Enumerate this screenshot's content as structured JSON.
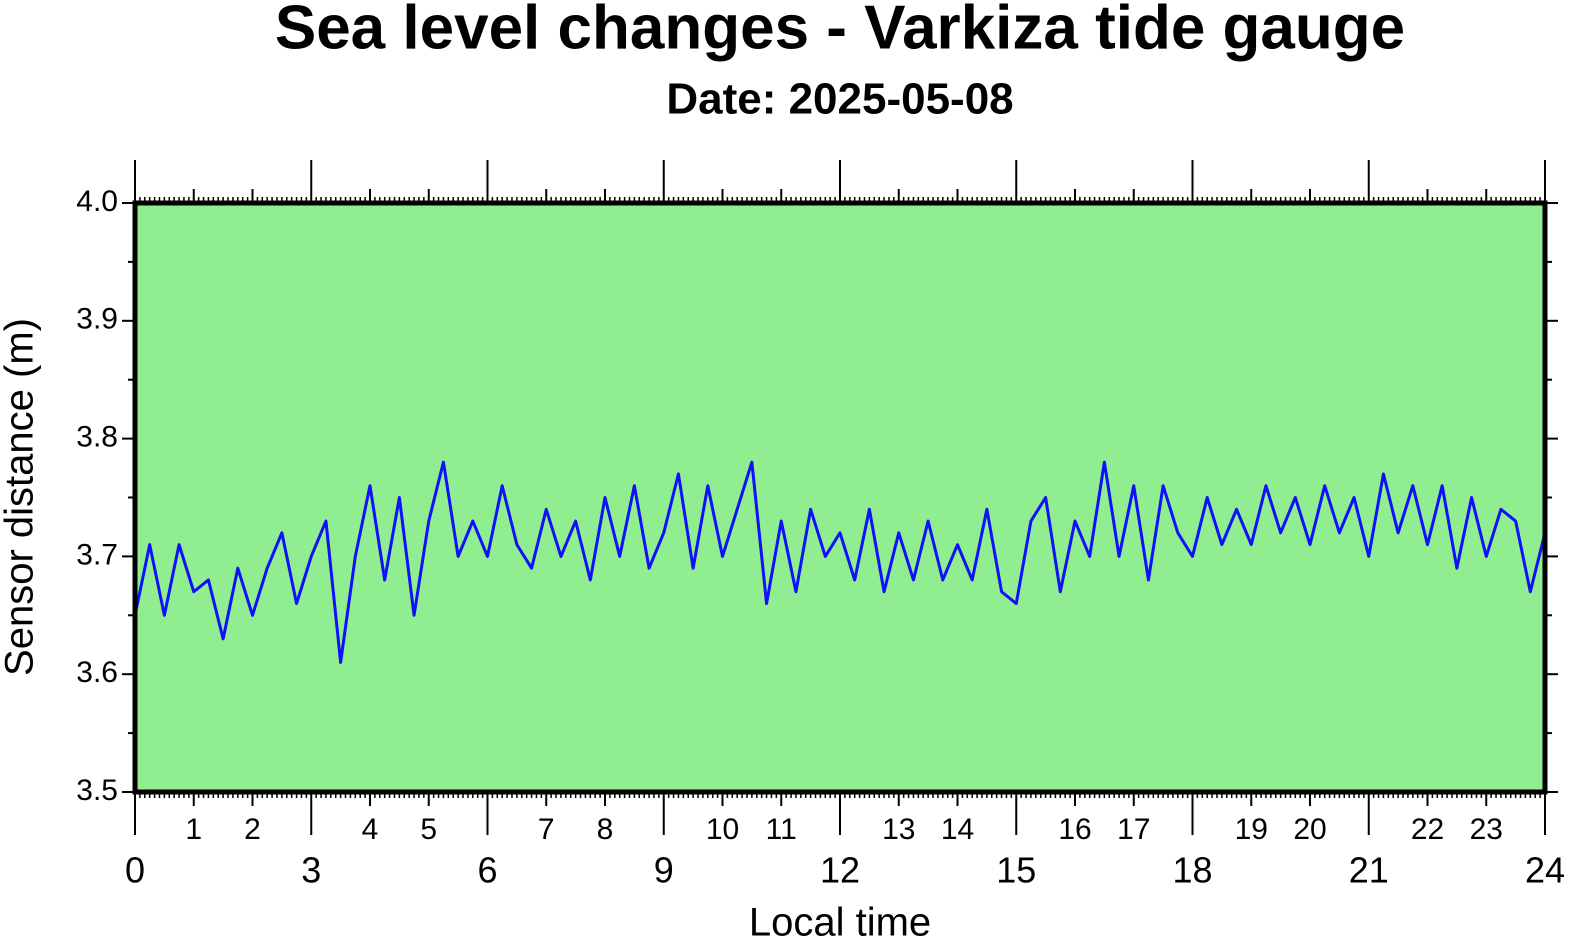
{
  "chart_data": {
    "type": "line",
    "title": "Sea level changes - Varkiza tide gauge",
    "subtitle": "Date: 2025-05-08",
    "xlabel": "Local time",
    "ylabel": "Sensor distance (m)",
    "background": "#90ee90",
    "xlim": [
      0,
      24
    ],
    "ylim": [
      3.5,
      4.0
    ],
    "xticks": [
      0,
      3,
      6,
      9,
      12,
      15,
      18,
      21,
      24
    ],
    "xticks_minor": [
      1,
      2,
      4,
      5,
      7,
      8,
      10,
      11,
      13,
      14,
      16,
      17,
      19,
      20,
      22,
      23
    ],
    "yticks": [
      {
        "value": 3.5,
        "label": "3.5"
      },
      {
        "value": 3.6,
        "label": "3.6"
      },
      {
        "value": 3.7,
        "label": "3.7"
      },
      {
        "value": 3.8,
        "label": "3.8"
      },
      {
        "value": 3.9,
        "label": "3.9"
      },
      {
        "value": 4.0,
        "label": "4.0"
      }
    ],
    "yticks_minor": [
      3.55,
      3.65,
      3.75,
      3.85,
      3.95
    ],
    "x": [
      0,
      0.25,
      0.5,
      0.75,
      1,
      1.25,
      1.5,
      1.75,
      2,
      2.25,
      2.5,
      2.75,
      3,
      3.25,
      3.5,
      3.75,
      4,
      4.25,
      4.5,
      4.75,
      5,
      5.25,
      5.5,
      5.75,
      6,
      6.25,
      6.5,
      6.75,
      7,
      7.25,
      7.5,
      7.75,
      8,
      8.25,
      8.5,
      8.75,
      9,
      9.25,
      9.5,
      9.75,
      10,
      10.25,
      10.5,
      10.75,
      11,
      11.25,
      11.5,
      11.75,
      12,
      12.25,
      12.5,
      12.75,
      13,
      13.25,
      13.5,
      13.75,
      14,
      14.25,
      14.5,
      14.75,
      15,
      15.25,
      15.5,
      15.75,
      16,
      16.25,
      16.5,
      16.75,
      17,
      17.25,
      17.5,
      17.75,
      18,
      18.25,
      18.5,
      18.75,
      19,
      19.25,
      19.5,
      19.75,
      20,
      20.25,
      20.5,
      20.75,
      21,
      21.25,
      21.5,
      21.75,
      22,
      22.25,
      22.5,
      22.75,
      23,
      23.25,
      23.5,
      23.75,
      24
    ],
    "series": [
      {
        "color": "#1010ff",
        "values": [
          3.65,
          3.71,
          3.65,
          3.71,
          3.67,
          3.68,
          3.63,
          3.69,
          3.65,
          3.69,
          3.72,
          3.66,
          3.7,
          3.73,
          3.61,
          3.7,
          3.76,
          3.68,
          3.75,
          3.65,
          3.73,
          3.78,
          3.7,
          3.73,
          3.7,
          3.76,
          3.71,
          3.69,
          3.74,
          3.7,
          3.73,
          3.68,
          3.75,
          3.7,
          3.76,
          3.69,
          3.72,
          3.77,
          3.69,
          3.76,
          3.7,
          3.74,
          3.78,
          3.66,
          3.73,
          3.67,
          3.74,
          3.7,
          3.72,
          3.68,
          3.74,
          3.67,
          3.72,
          3.68,
          3.73,
          3.68,
          3.71,
          3.68,
          3.74,
          3.67,
          3.66,
          3.73,
          3.75,
          3.67,
          3.73,
          3.7,
          3.78,
          3.7,
          3.76,
          3.68,
          3.76,
          3.72,
          3.7,
          3.75,
          3.71,
          3.74,
          3.71,
          3.76,
          3.72,
          3.75,
          3.71,
          3.76,
          3.72,
          3.75,
          3.7,
          3.77,
          3.72,
          3.76,
          3.71,
          3.76,
          3.69,
          3.75,
          3.7,
          3.74,
          3.73,
          3.67,
          3.72
        ]
      }
    ]
  }
}
